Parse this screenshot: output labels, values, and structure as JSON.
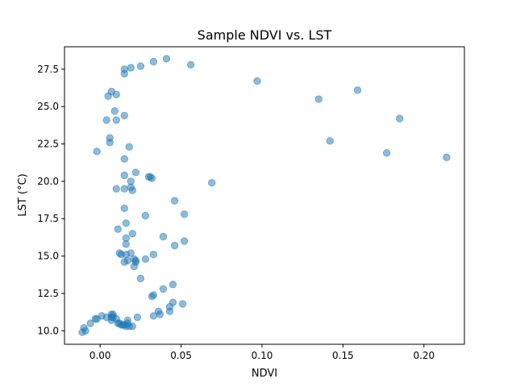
{
  "chart_data": {
    "type": "scatter",
    "title": "Sample NDVI vs. LST",
    "xlabel": "NDVI",
    "ylabel": "LST (°C)",
    "xlim": [
      -0.022,
      0.225
    ],
    "ylim": [
      9.1,
      29.0
    ],
    "xticks": [
      0.0,
      0.05,
      0.1,
      0.15,
      0.2
    ],
    "xtick_labels": [
      "0.00",
      "0.05",
      "0.10",
      "0.15",
      "0.20"
    ],
    "yticks": [
      10.0,
      12.5,
      15.0,
      17.5,
      20.0,
      22.5,
      25.0,
      27.5
    ],
    "ytick_labels": [
      "10.0",
      "12.5",
      "15.0",
      "17.5",
      "20.0",
      "22.5",
      "25.0",
      "27.5"
    ],
    "grid": false,
    "legend": "none",
    "marker_color": "#1f77b4",
    "marker_alpha": 0.5,
    "points": [
      [
        0.015,
        27.5
      ],
      [
        0.015,
        27.2
      ],
      [
        0.019,
        27.6
      ],
      [
        0.025,
        27.7
      ],
      [
        0.033,
        28.0
      ],
      [
        0.041,
        28.2
      ],
      [
        0.056,
        27.8
      ],
      [
        0.097,
        26.7
      ],
      [
        0.159,
        26.1
      ],
      [
        0.135,
        25.5
      ],
      [
        0.185,
        24.2
      ],
      [
        0.142,
        22.7
      ],
      [
        0.177,
        21.9
      ],
      [
        0.214,
        21.6
      ],
      [
        0.007,
        26.0
      ],
      [
        0.005,
        25.7
      ],
      [
        0.01,
        25.8
      ],
      [
        0.009,
        24.7
      ],
      [
        0.015,
        24.4
      ],
      [
        0.004,
        24.1
      ],
      [
        0.01,
        24.1
      ],
      [
        0.006,
        22.9
      ],
      [
        0.006,
        22.6
      ],
      [
        0.018,
        22.3
      ],
      [
        -0.002,
        22.0
      ],
      [
        0.015,
        21.5
      ],
      [
        0.022,
        20.6
      ],
      [
        0.015,
        20.4
      ],
      [
        0.03,
        20.3
      ],
      [
        0.031,
        20.3
      ],
      [
        0.032,
        20.2
      ],
      [
        0.019,
        20.0
      ],
      [
        0.069,
        19.9
      ],
      [
        0.019,
        19.6
      ],
      [
        0.01,
        19.5
      ],
      [
        0.015,
        19.5
      ],
      [
        0.02,
        19.4
      ],
      [
        0.046,
        18.7
      ],
      [
        0.015,
        18.2
      ],
      [
        0.052,
        17.8
      ],
      [
        0.028,
        17.7
      ],
      [
        0.016,
        17.2
      ],
      [
        0.011,
        16.8
      ],
      [
        0.02,
        16.5
      ],
      [
        0.039,
        16.3
      ],
      [
        0.016,
        16.2
      ],
      [
        0.052,
        16.0
      ],
      [
        0.016,
        15.8
      ],
      [
        0.046,
        15.7
      ],
      [
        0.012,
        15.2
      ],
      [
        0.013,
        15.1
      ],
      [
        0.016,
        15.1
      ],
      [
        0.019,
        15.2
      ],
      [
        0.033,
        15.1
      ],
      [
        0.021,
        14.8
      ],
      [
        0.028,
        14.8
      ],
      [
        0.022,
        14.7
      ],
      [
        0.015,
        14.6
      ],
      [
        0.017,
        14.7
      ],
      [
        0.022,
        14.6
      ],
      [
        0.021,
        14.3
      ],
      [
        0.025,
        13.5
      ],
      [
        0.045,
        13.1
      ],
      [
        0.039,
        12.8
      ],
      [
        0.033,
        12.4
      ],
      [
        0.032,
        12.3
      ],
      [
        0.045,
        11.9
      ],
      [
        0.051,
        11.8
      ],
      [
        0.043,
        11.6
      ],
      [
        0.036,
        11.3
      ],
      [
        0.043,
        11.3
      ],
      [
        0.037,
        11.1
      ],
      [
        0.033,
        11.0
      ],
      [
        0.023,
        10.9
      ],
      [
        0.007,
        11.1
      ],
      [
        0.008,
        11.1
      ],
      [
        0.007,
        10.9
      ],
      [
        0.008,
        10.9
      ],
      [
        0.01,
        10.8
      ],
      [
        0.001,
        11.0
      ],
      [
        -0.002,
        10.8
      ],
      [
        -0.003,
        10.8
      ],
      [
        0.004,
        10.9
      ],
      [
        0.007,
        10.7
      ],
      [
        0.017,
        10.7
      ],
      [
        0.017,
        10.5
      ],
      [
        0.011,
        10.5
      ],
      [
        0.012,
        10.5
      ],
      [
        0.013,
        10.4
      ],
      [
        0.014,
        10.4
      ],
      [
        0.015,
        10.4
      ],
      [
        0.016,
        10.3
      ],
      [
        0.018,
        10.3
      ],
      [
        0.02,
        10.3
      ],
      [
        -0.006,
        10.5
      ],
      [
        -0.01,
        10.2
      ],
      [
        -0.009,
        10.0
      ],
      [
        -0.011,
        9.9
      ]
    ]
  }
}
